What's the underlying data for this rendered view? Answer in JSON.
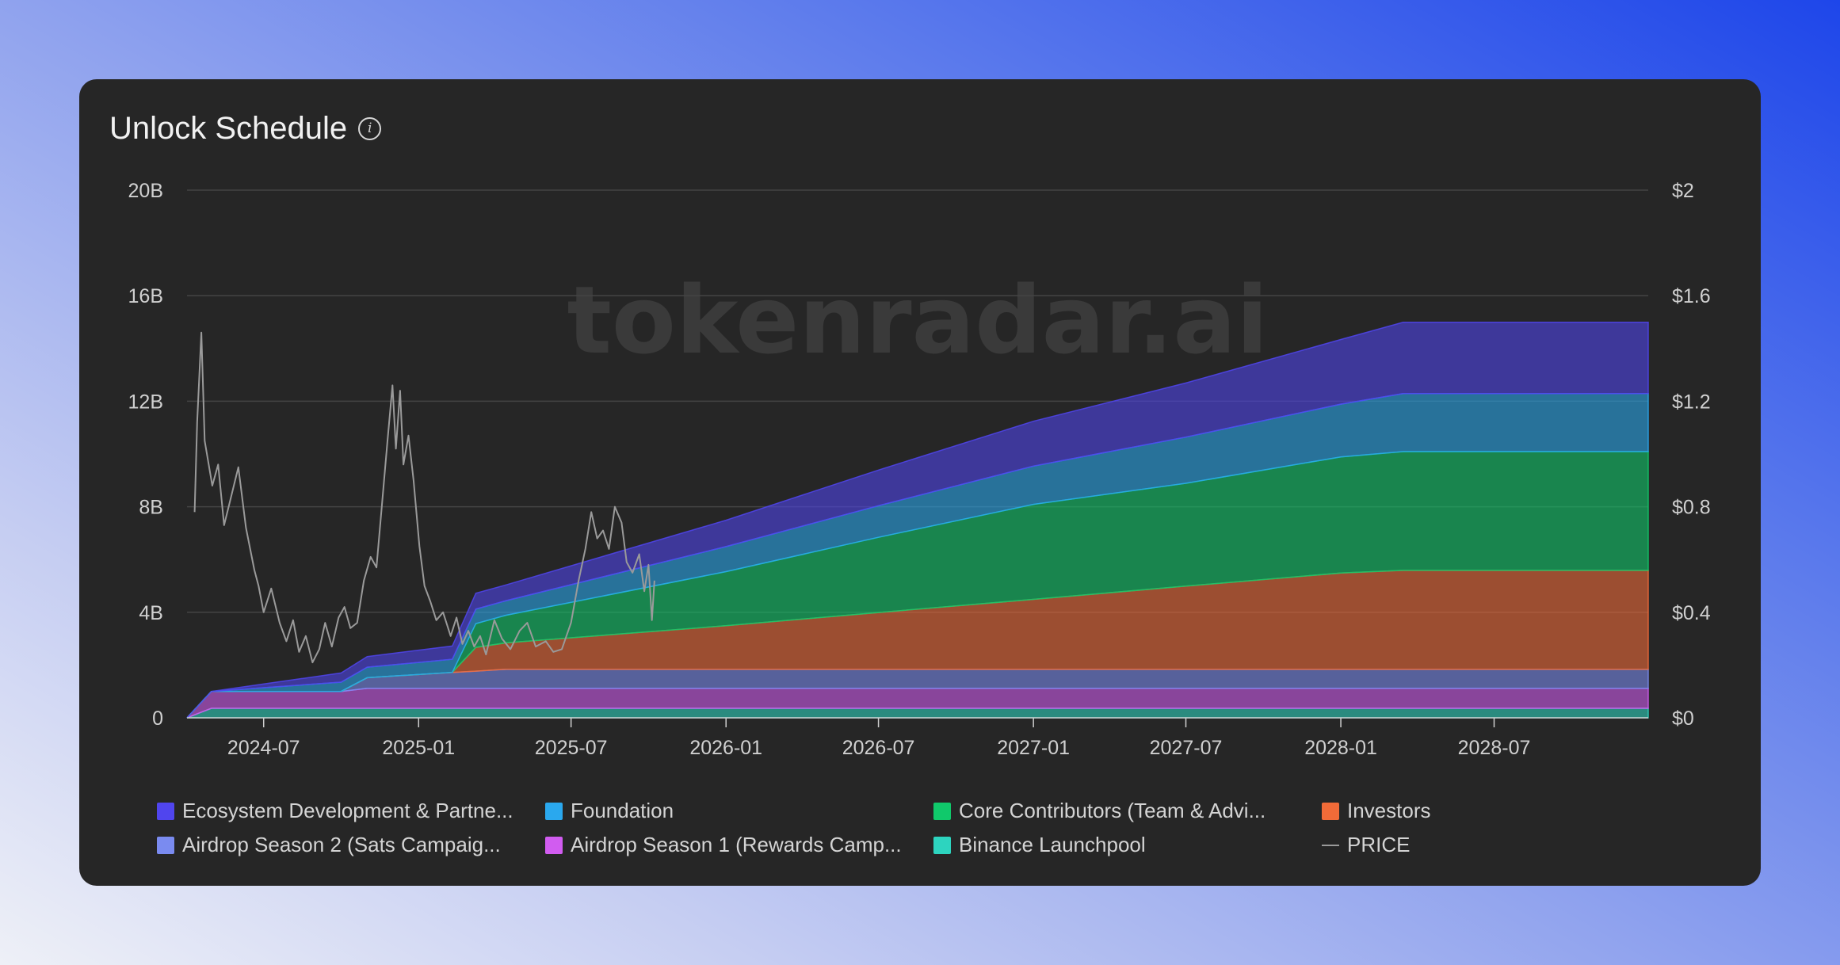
{
  "page": {
    "title": "Unlock Schedule",
    "info_icon": "info-circle-icon",
    "watermark": "tokenradar.ai"
  },
  "chart_data": {
    "type": "area",
    "title": "Unlock Schedule",
    "stacked": true,
    "x_type": "date",
    "xlim": [
      "2024-04-01",
      "2028-12-31"
    ],
    "x_ticks": [
      "2024-07",
      "2025-01",
      "2025-07",
      "2026-01",
      "2026-07",
      "2027-01",
      "2027-07",
      "2028-01",
      "2028-07"
    ],
    "x_tick_dates": [
      "2024-07-01",
      "2025-01-01",
      "2025-07-01",
      "2026-01-01",
      "2026-07-01",
      "2027-01-01",
      "2027-07-01",
      "2028-01-01",
      "2028-07-01"
    ],
    "ylim": [
      0,
      20
    ],
    "y_unit": "B",
    "y_ticks": [
      0,
      4,
      8,
      12,
      16,
      20
    ],
    "y_tick_labels": [
      "0",
      "4B",
      "8B",
      "12B",
      "16B",
      "20B"
    ],
    "y2lim": [
      0,
      2
    ],
    "y2_ticks": [
      0,
      0.4,
      0.8,
      1.2,
      1.6,
      2
    ],
    "y2_tick_labels": [
      "$0",
      "$0.4",
      "$0.8",
      "$1.2",
      "$1.6",
      "$2"
    ],
    "grid": true,
    "legend_position": "bottom",
    "x": [
      "2024-04-01",
      "2024-04-30",
      "2024-10-01",
      "2024-11-01",
      "2025-02-10",
      "2025-03-10",
      "2025-04-15",
      "2026-01-01",
      "2026-07-01",
      "2027-01-01",
      "2027-07-01",
      "2028-01-01",
      "2028-03-15",
      "2028-04-15",
      "2028-12-31"
    ],
    "series": [
      {
        "name": "Binance Launchpool",
        "color": "#2dd4bf",
        "values": [
          0,
          0.36,
          0.36,
          0.36,
          0.36,
          0.36,
          0.36,
          0.36,
          0.36,
          0.36,
          0.36,
          0.36,
          0.36,
          0.36,
          0.36
        ]
      },
      {
        "name": "Airdrop Season 1 (Rewards Camp...",
        "color": "#d15cf0",
        "values": [
          0,
          0.64,
          0.64,
          0.76,
          0.76,
          0.76,
          0.76,
          0.76,
          0.76,
          0.76,
          0.76,
          0.76,
          0.76,
          0.76,
          0.76
        ]
      },
      {
        "name": "Airdrop Season 2 (Sats Campaig...",
        "color": "#7a8bf0",
        "values": [
          0,
          0,
          0,
          0.4,
          0.6,
          0.65,
          0.72,
          0.72,
          0.72,
          0.72,
          0.72,
          0.72,
          0.72,
          0.72,
          0.72
        ]
      },
      {
        "name": "Investors",
        "color": "#f26b38",
        "values": [
          0,
          0,
          0,
          0,
          0,
          0.9,
          1.0,
          1.65,
          2.15,
          2.65,
          3.15,
          3.65,
          3.75,
          3.75,
          3.75
        ]
      },
      {
        "name": "Core Contributors (Team & Advi...",
        "color": "#10c96b",
        "values": [
          0,
          0,
          0,
          0,
          0,
          0.9,
          1.05,
          2.05,
          2.85,
          3.6,
          3.9,
          4.4,
          4.5,
          4.5,
          4.5
        ]
      },
      {
        "name": "Foundation",
        "color": "#2aa8ee",
        "values": [
          0,
          0,
          0.35,
          0.4,
          0.5,
          0.55,
          0.55,
          0.95,
          1.2,
          1.45,
          1.75,
          2.0,
          2.2,
          2.2,
          2.2
        ]
      },
      {
        "name": "Ecosystem Development & Partne...",
        "color": "#5045ee",
        "values": [
          0,
          0,
          0.35,
          0.4,
          0.5,
          0.6,
          0.6,
          1.0,
          1.35,
          1.7,
          2.05,
          2.45,
          2.7,
          2.7,
          2.7
        ]
      }
    ],
    "price_series": {
      "name": "PRICE",
      "color": "#9a9a9a",
      "axis": "right",
      "x": [
        "2024-04-10",
        "2024-04-13",
        "2024-04-18",
        "2024-04-22",
        "2024-05-01",
        "2024-05-08",
        "2024-05-15",
        "2024-05-22",
        "2024-06-01",
        "2024-06-10",
        "2024-06-20",
        "2024-06-25",
        "2024-07-01",
        "2024-07-10",
        "2024-07-20",
        "2024-07-28",
        "2024-08-05",
        "2024-08-12",
        "2024-08-20",
        "2024-08-28",
        "2024-09-05",
        "2024-09-12",
        "2024-09-20",
        "2024-09-28",
        "2024-10-05",
        "2024-10-12",
        "2024-10-20",
        "2024-10-28",
        "2024-11-05",
        "2024-11-12",
        "2024-11-18",
        "2024-11-25",
        "2024-12-01",
        "2024-12-05",
        "2024-12-10",
        "2024-12-14",
        "2024-12-20",
        "2024-12-26",
        "2025-01-02",
        "2025-01-08",
        "2025-01-15",
        "2025-01-22",
        "2025-01-30",
        "2025-02-08",
        "2025-02-15",
        "2025-02-22",
        "2025-03-01",
        "2025-03-08",
        "2025-03-15",
        "2025-03-22",
        "2025-04-01",
        "2025-04-10",
        "2025-04-20",
        "2025-05-01",
        "2025-05-10",
        "2025-05-20",
        "2025-06-01",
        "2025-06-10",
        "2025-06-20",
        "2025-07-01",
        "2025-07-10",
        "2025-07-18",
        "2025-07-25",
        "2025-08-01",
        "2025-08-08",
        "2025-08-15",
        "2025-08-22",
        "2025-08-30",
        "2025-09-05",
        "2025-09-12",
        "2025-09-20",
        "2025-09-26",
        "2025-10-01",
        "2025-10-05",
        "2025-10-08"
      ],
      "values": [
        0.78,
        1.12,
        1.46,
        1.05,
        0.88,
        0.96,
        0.73,
        0.82,
        0.95,
        0.72,
        0.56,
        0.5,
        0.4,
        0.49,
        0.36,
        0.29,
        0.37,
        0.25,
        0.31,
        0.21,
        0.26,
        0.36,
        0.27,
        0.38,
        0.42,
        0.34,
        0.36,
        0.52,
        0.61,
        0.57,
        0.79,
        1.05,
        1.26,
        1.02,
        1.24,
        0.96,
        1.07,
        0.9,
        0.65,
        0.5,
        0.44,
        0.37,
        0.4,
        0.31,
        0.38,
        0.28,
        0.33,
        0.27,
        0.31,
        0.24,
        0.37,
        0.3,
        0.26,
        0.33,
        0.36,
        0.27,
        0.29,
        0.25,
        0.26,
        0.36,
        0.52,
        0.64,
        0.78,
        0.68,
        0.71,
        0.64,
        0.8,
        0.74,
        0.59,
        0.55,
        0.62,
        0.48,
        0.58,
        0.37,
        0.52
      ]
    }
  },
  "legend": {
    "items": [
      {
        "label": "Ecosystem Development & Partne...",
        "color": "#5045ee",
        "kind": "swatch"
      },
      {
        "label": "Foundation",
        "color": "#2aa8ee",
        "kind": "swatch"
      },
      {
        "label": "Core Contributors (Team & Advi...",
        "color": "#10c96b",
        "kind": "swatch"
      },
      {
        "label": "Investors",
        "color": "#f26b38",
        "kind": "swatch"
      },
      {
        "label": "Airdrop Season 2 (Sats Campaig...",
        "color": "#7a8bf0",
        "kind": "swatch"
      },
      {
        "label": "Airdrop Season 1 (Rewards Camp...",
        "color": "#d15cf0",
        "kind": "swatch"
      },
      {
        "label": "Binance Launchpool",
        "color": "#2dd4bf",
        "kind": "swatch"
      },
      {
        "label": "PRICE",
        "color": "#9a9a9a",
        "kind": "line"
      }
    ]
  }
}
